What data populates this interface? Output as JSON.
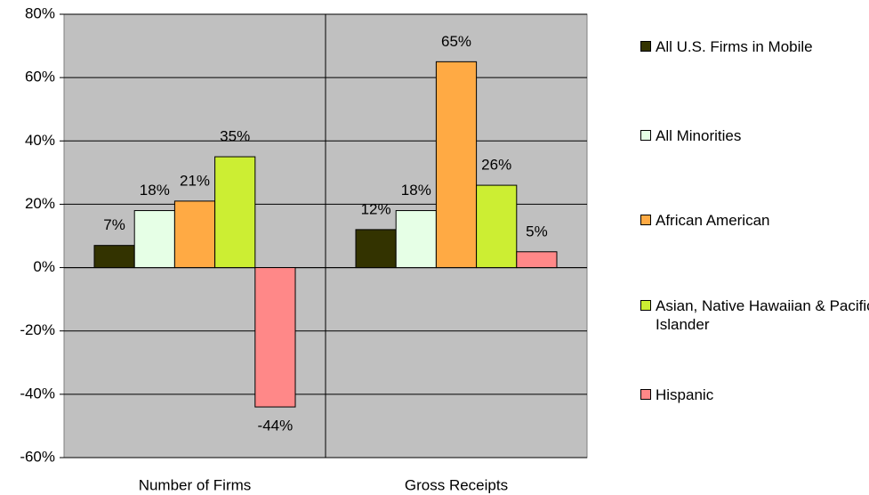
{
  "chart_data": {
    "type": "bar",
    "categories": [
      "Number of Firms",
      "Gross Receipts"
    ],
    "series": [
      {
        "name": "All U.S. Firms in Mobile",
        "color": "#333300",
        "values": [
          7,
          12
        ],
        "value_labels": [
          "7%",
          "12%"
        ]
      },
      {
        "name": "All Minorities",
        "color": "#e6ffe6",
        "values": [
          18,
          18
        ],
        "value_labels": [
          "18%",
          "18%"
        ]
      },
      {
        "name": "African American",
        "color": "#ffaa44",
        "values": [
          21,
          65
        ],
        "value_labels": [
          "21%",
          "65%"
        ]
      },
      {
        "name": "Asian, Native Hawaiian & Pacific Islander",
        "color": "#ccee33",
        "values": [
          35,
          26
        ],
        "value_labels": [
          "35%",
          "26%"
        ]
      },
      {
        "name": "Hispanic",
        "color": "#ff8888",
        "values": [
          -44,
          5
        ],
        "value_labels": [
          "-44%",
          "5%"
        ]
      }
    ],
    "ylim": [
      -60,
      80
    ],
    "yticks": [
      {
        "value": -60,
        "label": "-60%"
      },
      {
        "value": -40,
        "label": "-40%"
      },
      {
        "value": -20,
        "label": "-20%"
      },
      {
        "value": 0,
        "label": "0%"
      },
      {
        "value": 20,
        "label": "20%"
      },
      {
        "value": 40,
        "label": "40%"
      },
      {
        "value": 60,
        "label": "60%"
      },
      {
        "value": 80,
        "label": "80%"
      }
    ],
    "grid": true,
    "legend": "right"
  }
}
